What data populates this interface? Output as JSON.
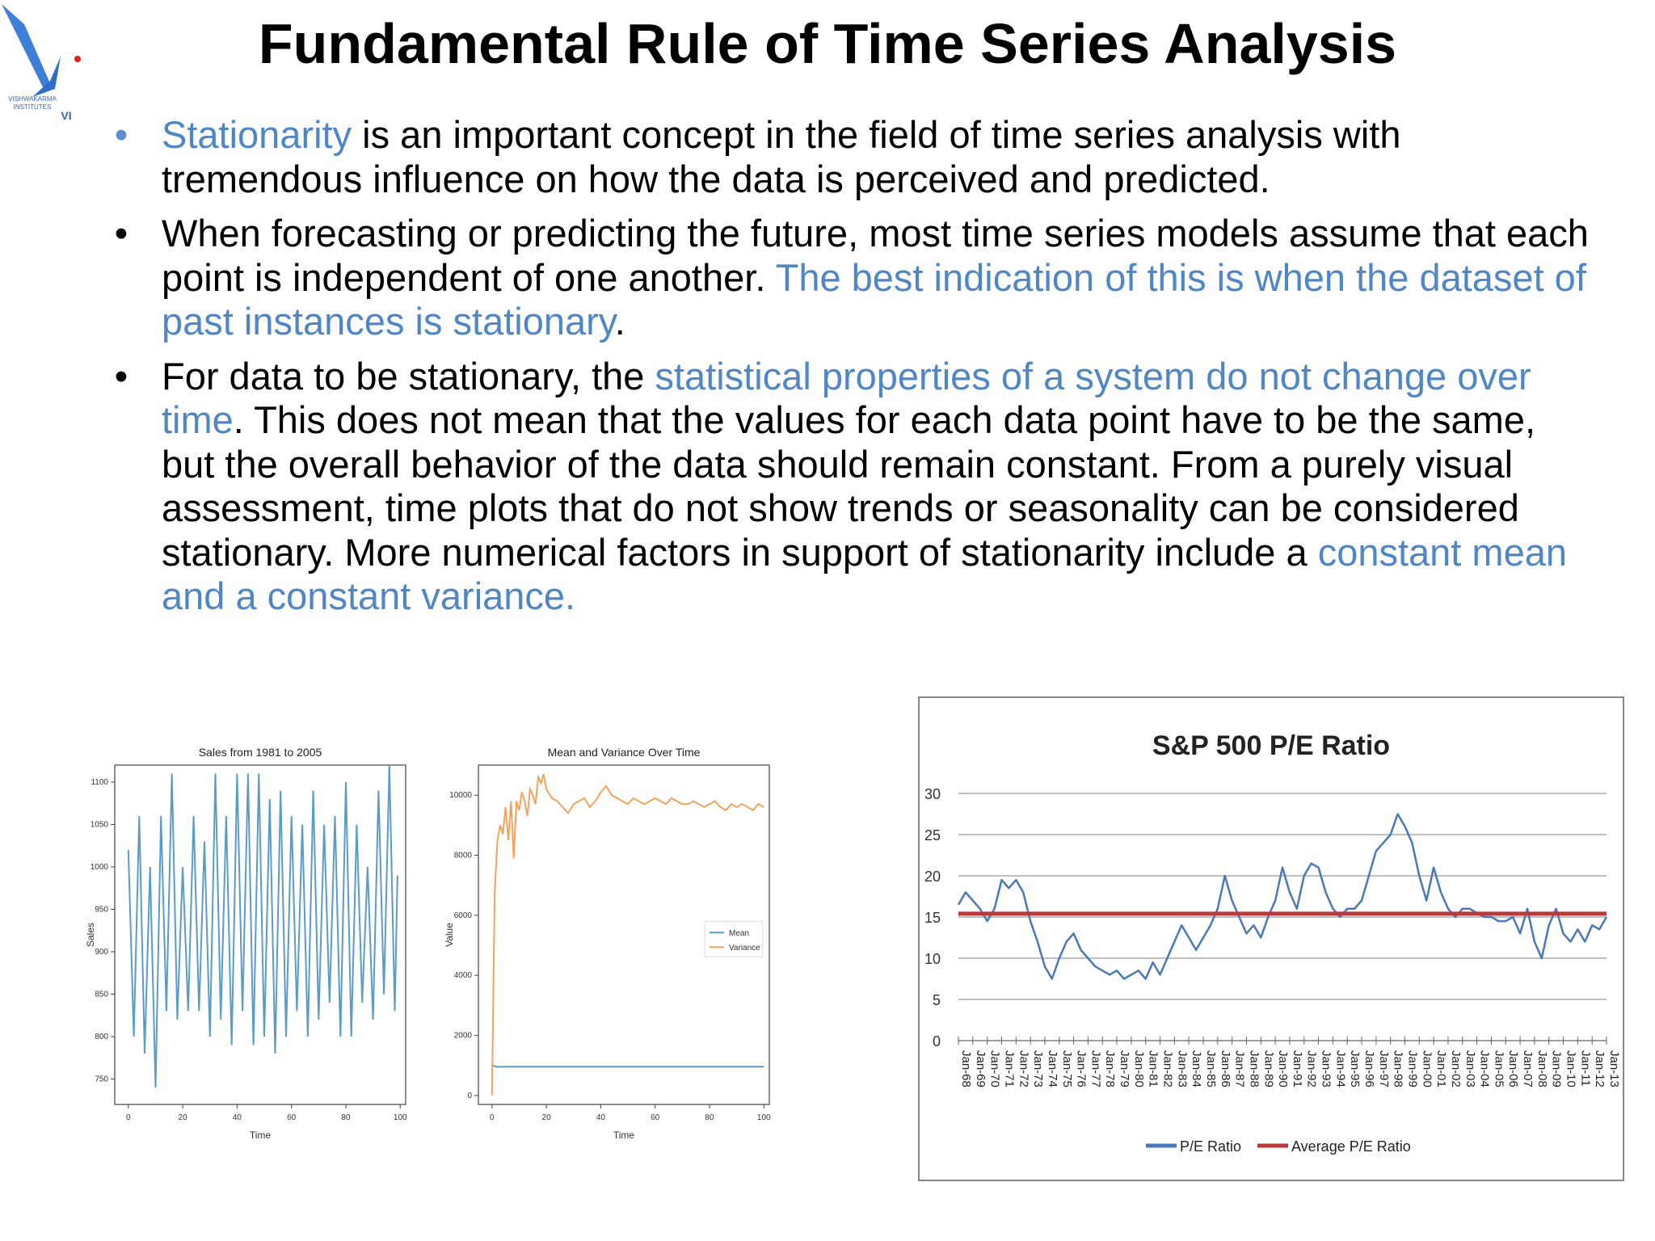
{
  "logo": {
    "line1": "VISHWAKARMA",
    "line2": "INSTITUTES",
    "mark": "VI"
  },
  "title": "Fundamental Rule of Time Series Analysis",
  "bullets": [
    {
      "parts": [
        {
          "text": "Stationarity",
          "hl": true
        },
        {
          "text": " is an important concept in the field of time series analysis with tremendous influence on how the data is perceived and predicted.",
          "hl": false
        }
      ]
    },
    {
      "parts": [
        {
          "text": "When forecasting or predicting the future, most time series models assume that each point is independent of one another. ",
          "hl": false
        },
        {
          "text": "The best indication of this is when the dataset of past instances is stationary",
          "hl": true
        },
        {
          "text": ".",
          "hl": false
        }
      ]
    },
    {
      "parts": [
        {
          "text": "For data to be stationary, the ",
          "hl": false
        },
        {
          "text": "statistical properties of a system do not change over time",
          "hl": true
        },
        {
          "text": ". This does not mean that the values for each data point have to be the same, but the overall behavior of the data should remain constant. From a purely visual assessment, time plots that do not show trends or seasonality can be considered stationary. More numerical factors in support of stationarity include a ",
          "hl": false
        },
        {
          "text": "constant mean and a constant variance.",
          "hl": true
        }
      ]
    }
  ],
  "colors": {
    "highlight": "#4f86c6",
    "line_blue": "#5b9bc8",
    "line_orange": "#f0a45c",
    "pe_blue": "#4a78b8",
    "pe_red": "#b83a3a"
  },
  "chart_data": [
    {
      "type": "line",
      "title": "Sales from 1981 to 2005",
      "xlabel": "Time",
      "ylabel": "Sales",
      "xlim": [
        -5,
        102
      ],
      "ylim": [
        720,
        1120
      ],
      "xticks": [
        "0",
        "20",
        "40",
        "60",
        "80",
        "100"
      ],
      "yticks": [
        "750",
        "800",
        "850",
        "900",
        "950",
        "1000",
        "1050",
        "1100"
      ],
      "series": [
        {
          "color": "#5b9bc8",
          "x": [
            0,
            2,
            4,
            6,
            8,
            10,
            12,
            14,
            16,
            18,
            20,
            22,
            24,
            26,
            28,
            30,
            32,
            34,
            36,
            38,
            40,
            42,
            44,
            46,
            48,
            50,
            52,
            54,
            56,
            58,
            60,
            62,
            64,
            66,
            68,
            70,
            72,
            74,
            76,
            78,
            80,
            82,
            84,
            86,
            88,
            90,
            92,
            94,
            96,
            98,
            99
          ],
          "values": [
            1020,
            800,
            1060,
            780,
            1000,
            740,
            1060,
            830,
            1110,
            820,
            1000,
            830,
            1060,
            830,
            1030,
            800,
            1110,
            820,
            1060,
            790,
            1110,
            830,
            1110,
            790,
            1110,
            800,
            1080,
            780,
            1090,
            800,
            1060,
            830,
            1050,
            800,
            1090,
            820,
            1050,
            840,
            1060,
            800,
            1100,
            800,
            1050,
            840,
            1000,
            820,
            1090,
            850,
            1120,
            830,
            990
          ]
        }
      ]
    },
    {
      "type": "line",
      "title": "Mean and Variance Over Time",
      "xlabel": "Time",
      "ylabel": "Value",
      "xlim": [
        -5,
        102
      ],
      "ylim": [
        -300,
        11000
      ],
      "xticks": [
        "0",
        "20",
        "40",
        "60",
        "80",
        "100"
      ],
      "yticks": [
        "0",
        "2000",
        "4000",
        "6000",
        "8000",
        "10000"
      ],
      "legend": {
        "position": "center-right",
        "entries": [
          "Mean",
          "Variance"
        ]
      },
      "series": [
        {
          "name": "Mean",
          "color": "#5b9bc8",
          "x": [
            0,
            2,
            5,
            10,
            20,
            40,
            60,
            80,
            100
          ],
          "values": [
            1000,
            950,
            960,
            960,
            960,
            960,
            960,
            960,
            960
          ]
        },
        {
          "name": "Variance",
          "color": "#f0a45c",
          "x": [
            0,
            1,
            2,
            3,
            4,
            5,
            6,
            7,
            8,
            9,
            10,
            11,
            12,
            13,
            14,
            15,
            16,
            17,
            18,
            19,
            20,
            22,
            24,
            26,
            28,
            30,
            32,
            34,
            36,
            38,
            40,
            42,
            44,
            46,
            48,
            50,
            52,
            54,
            56,
            58,
            60,
            62,
            64,
            66,
            68,
            70,
            72,
            74,
            76,
            78,
            80,
            82,
            84,
            86,
            88,
            90,
            92,
            94,
            96,
            98,
            100
          ],
          "values": [
            0,
            6800,
            8500,
            9000,
            8700,
            9600,
            8500,
            9800,
            7900,
            9800,
            9500,
            10100,
            9800,
            9300,
            10200,
            10000,
            9700,
            10600,
            10400,
            10700,
            10200,
            9900,
            9800,
            9600,
            9400,
            9700,
            9800,
            9900,
            9600,
            9800,
            10100,
            10300,
            10000,
            9900,
            9800,
            9700,
            9900,
            9800,
            9700,
            9800,
            9900,
            9800,
            9700,
            9900,
            9800,
            9700,
            9700,
            9800,
            9700,
            9600,
            9700,
            9800,
            9600,
            9500,
            9700,
            9600,
            9700,
            9600,
            9500,
            9700,
            9600
          ]
        }
      ]
    },
    {
      "type": "line",
      "title": "S&P 500 P/E Ratio",
      "ylim": [
        0,
        30
      ],
      "yticks": [
        "0",
        "5",
        "10",
        "15",
        "20",
        "25",
        "30"
      ],
      "xticks": [
        "Jan-68",
        "Jan-69",
        "Jan-70",
        "Jan-71",
        "Jan-72",
        "Jan-73",
        "Jan-74",
        "Jan-75",
        "Jan-76",
        "Jan-77",
        "Jan-78",
        "Jan-79",
        "Jan-80",
        "Jan-81",
        "Jan-82",
        "Jan-83",
        "Jan-84",
        "Jan-85",
        "Jan-86",
        "Jan-87",
        "Jan-88",
        "Jan-89",
        "Jan-90",
        "Jan-91",
        "Jan-92",
        "Jan-93",
        "Jan-94",
        "Jan-95",
        "Jan-96",
        "Jan-97",
        "Jan-98",
        "Jan-99",
        "Jan-00",
        "Jan-01",
        "Jan-02",
        "Jan-03",
        "Jan-04",
        "Jan-05",
        "Jan-06",
        "Jan-07",
        "Jan-08",
        "Jan-09",
        "Jan-10",
        "Jan-11",
        "Jan-12",
        "Jan-13"
      ],
      "legend": {
        "position": "bottom",
        "entries": [
          "P/E Ratio",
          "Average P/E Ratio"
        ]
      },
      "series": [
        {
          "name": "P/E Ratio",
          "color": "#4a78b8",
          "x": [
            1968,
            1968.5,
            1969,
            1969.5,
            1970,
            1970.5,
            1971,
            1971.5,
            1972,
            1972.5,
            1973,
            1973.5,
            1974,
            1974.5,
            1975,
            1975.5,
            1976,
            1976.5,
            1977,
            1977.5,
            1978,
            1978.5,
            1979,
            1979.5,
            1980,
            1980.5,
            1981,
            1981.5,
            1982,
            1982.5,
            1983,
            1983.5,
            1984,
            1984.5,
            1985,
            1985.5,
            1986,
            1986.5,
            1987,
            1987.5,
            1988,
            1988.5,
            1989,
            1989.5,
            1990,
            1990.5,
            1991,
            1991.5,
            1992,
            1992.5,
            1993,
            1993.5,
            1994,
            1994.5,
            1995,
            1995.5,
            1996,
            1996.5,
            1997,
            1997.5,
            1998,
            1998.5,
            1999,
            1999.5,
            2000,
            2000.5,
            2001,
            2001.5,
            2002,
            2002.5,
            2003,
            2003.5,
            2004,
            2004.5,
            2005,
            2005.5,
            2006,
            2006.5,
            2007,
            2007.5,
            2008,
            2008.5,
            2009,
            2009.5,
            2010,
            2010.5,
            2011,
            2011.5,
            2012,
            2012.5,
            2013
          ],
          "values": [
            16.5,
            18,
            17,
            16,
            14.5,
            16,
            19.5,
            18.5,
            19.5,
            18,
            14.5,
            12,
            9,
            7.5,
            10,
            12,
            13,
            11,
            10,
            9,
            8.5,
            8,
            8.5,
            7.5,
            8,
            8.5,
            7.5,
            9.5,
            8,
            10,
            12,
            14,
            12.5,
            11,
            12.5,
            14,
            16,
            20,
            17,
            15,
            13,
            14,
            12.5,
            15,
            17,
            21,
            18,
            16,
            20,
            21.5,
            21,
            18,
            16,
            15,
            16,
            16,
            17,
            20,
            23,
            24,
            25,
            27.5,
            26,
            24,
            20,
            17,
            21,
            18,
            16,
            15,
            16,
            16,
            15.5,
            15,
            15,
            14.5,
            14.5,
            15,
            13,
            16,
            12,
            10,
            14,
            16,
            13,
            12,
            13.5,
            12,
            14,
            13.5,
            15
          ]
        },
        {
          "name": "Average P/E Ratio",
          "color": "#b83a3a",
          "x": [
            1968,
            2013
          ],
          "values": [
            15.4,
            15.4
          ]
        }
      ]
    }
  ]
}
